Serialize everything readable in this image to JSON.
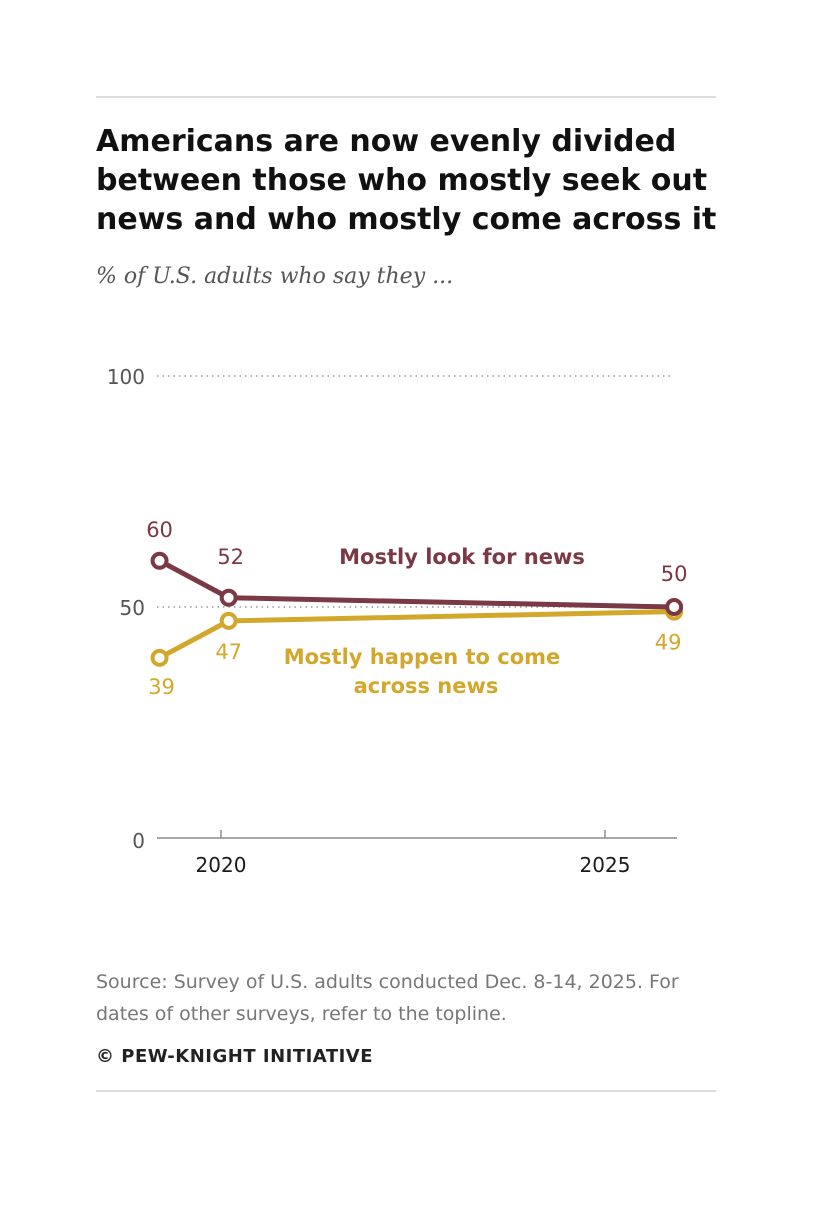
{
  "title": "Americans are now evenly divided between those who mostly seek out news and who mostly come across it",
  "subtitle": "% of U.S. adults who say they ...",
  "source": "Source: Survey of U.S. adults conducted Dec. 8-14, 2025. For dates of other surveys, refer to the topline.",
  "credit": "© PEW-KNIGHT INITIATIVE",
  "colors": {
    "look": "#7a3945",
    "happen": "#d2a72b",
    "grid": "#999999",
    "axis": "#8c8c8c",
    "tick_text": "#555555"
  },
  "chart_data": {
    "type": "line",
    "ylim": [
      0,
      100
    ],
    "y_ticks": [
      "0",
      "50",
      "100"
    ],
    "x_ticks": [
      "2020",
      "2025"
    ],
    "grid": "dotted at 50 and 100",
    "series": [
      {
        "name": "Mostly look for news",
        "color": "#7a3945",
        "points": [
          {
            "x": 2019.2,
            "y": 60,
            "label": "60"
          },
          {
            "x": 2020.1,
            "y": 52,
            "label": "52"
          },
          {
            "x": 2025.9,
            "y": 50,
            "label": "50"
          }
        ]
      },
      {
        "name": "Mostly happen to come across news",
        "color": "#d2a72b",
        "points": [
          {
            "x": 2019.2,
            "y": 39,
            "label": "39"
          },
          {
            "x": 2020.1,
            "y": 47,
            "label": "47"
          },
          {
            "x": 2025.9,
            "y": 49,
            "label": "49"
          }
        ]
      }
    ],
    "series_labels": {
      "look": "Mostly look for news",
      "happen_line1": "Mostly happen to come",
      "happen_line2": "across news"
    }
  }
}
